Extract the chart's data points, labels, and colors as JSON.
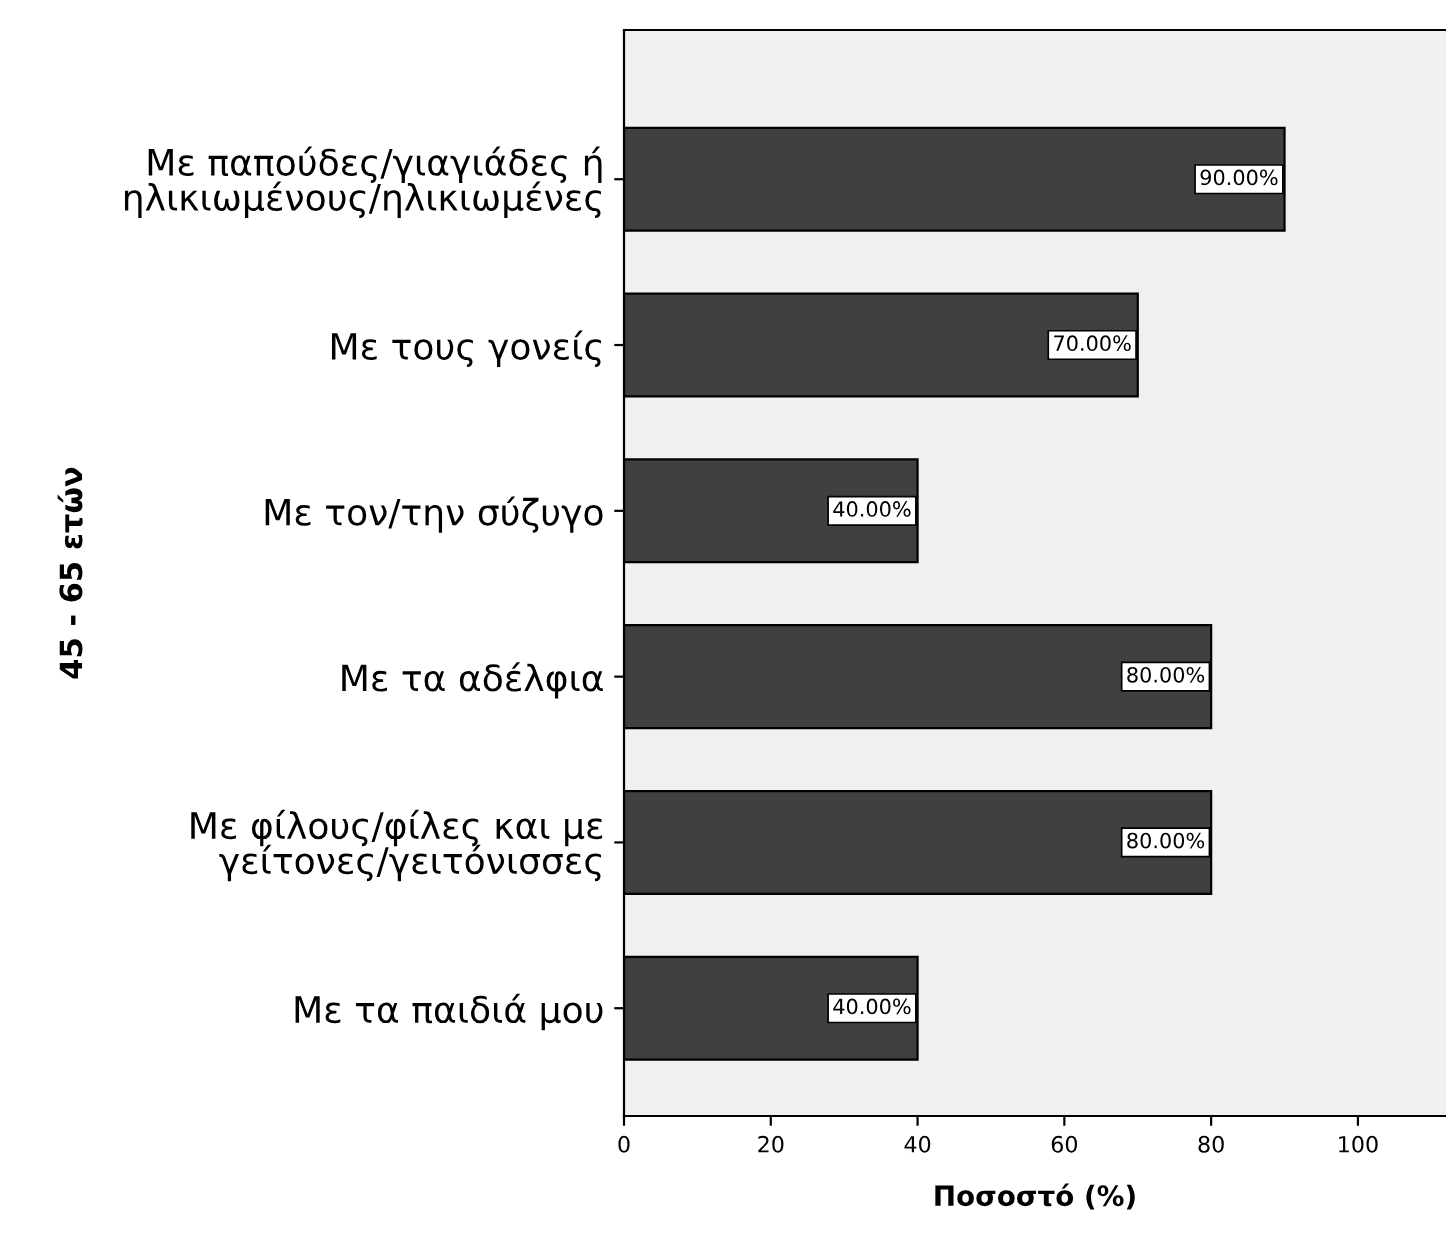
{
  "chart_data": {
    "type": "bar",
    "orientation": "horizontal",
    "ylabel": "45 - 65 ετών",
    "xlabel": "Ποσοστό (%)",
    "categories": [
      "Με παπούδες/γιαγιάδες ή\nηλικιωμένους/ηλικιωμένες",
      "Με τους γονείς",
      "Με τον/την σύζυγο",
      "Με τα αδέλφια",
      "Με φίλους/φίλες και με\nγείτονες/γειτόνισσες",
      "Με τα παιδιά μου"
    ],
    "values": [
      90,
      70,
      40,
      80,
      80,
      40
    ],
    "value_labels": [
      "90.00%",
      "70.00%",
      "40.00%",
      "80.00%",
      "80.00%",
      "40.00%"
    ],
    "color": "#404040",
    "xlim": [
      0,
      112
    ],
    "xticks": [
      0,
      20,
      40,
      60,
      80,
      100
    ],
    "grid": false,
    "legend": false
  }
}
